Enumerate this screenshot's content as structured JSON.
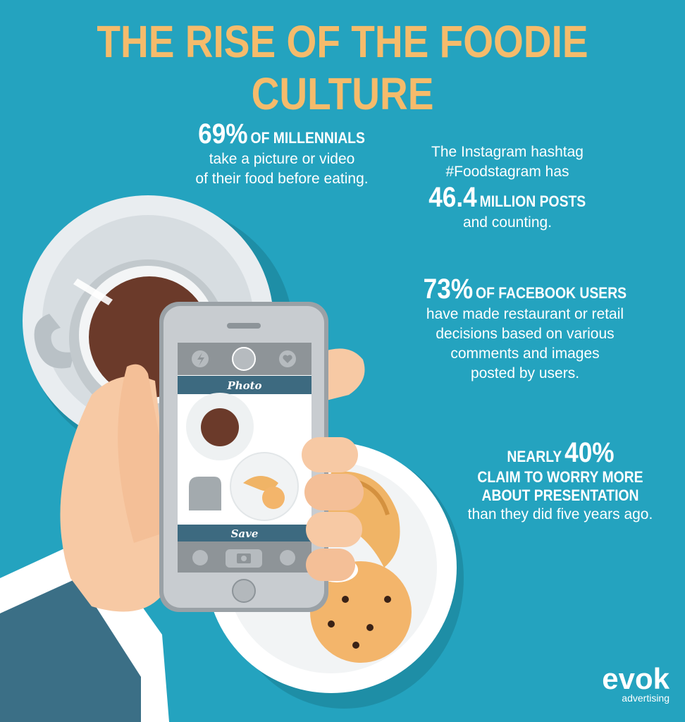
{
  "title": "THE RISE OF THE FOODIE CULTURE",
  "stats": {
    "millennials": {
      "big": "69%",
      "caption": "OF MILLENNIALS",
      "line1": "take a picture or video",
      "line2": "of their food before eating."
    },
    "instagram": {
      "line1": "The Instagram hashtag",
      "line2": "#Foodstagram has",
      "big": "46.4",
      "caption": "MILLION POSTS",
      "line3": "and counting."
    },
    "facebook": {
      "big": "73%",
      "caption": "OF FACEBOOK USERS",
      "line1": "have made restaurant or retail",
      "line2": "decisions based on various",
      "line3": "comments and images",
      "line4": "posted by users."
    },
    "presentation": {
      "prefix": "NEARLY",
      "big": "40%",
      "caption1": "CLAIM TO WORRY MORE",
      "caption2": "ABOUT PRESENTATION",
      "line1": "than they did five years ago."
    }
  },
  "phone": {
    "photo_label": "Photo",
    "save_label": "Save"
  },
  "logo": {
    "brand": "evok",
    "tagline": "advertising"
  },
  "colors": {
    "background": "#24a3bf",
    "title": "#f5bb6b",
    "text": "#ffffff"
  }
}
